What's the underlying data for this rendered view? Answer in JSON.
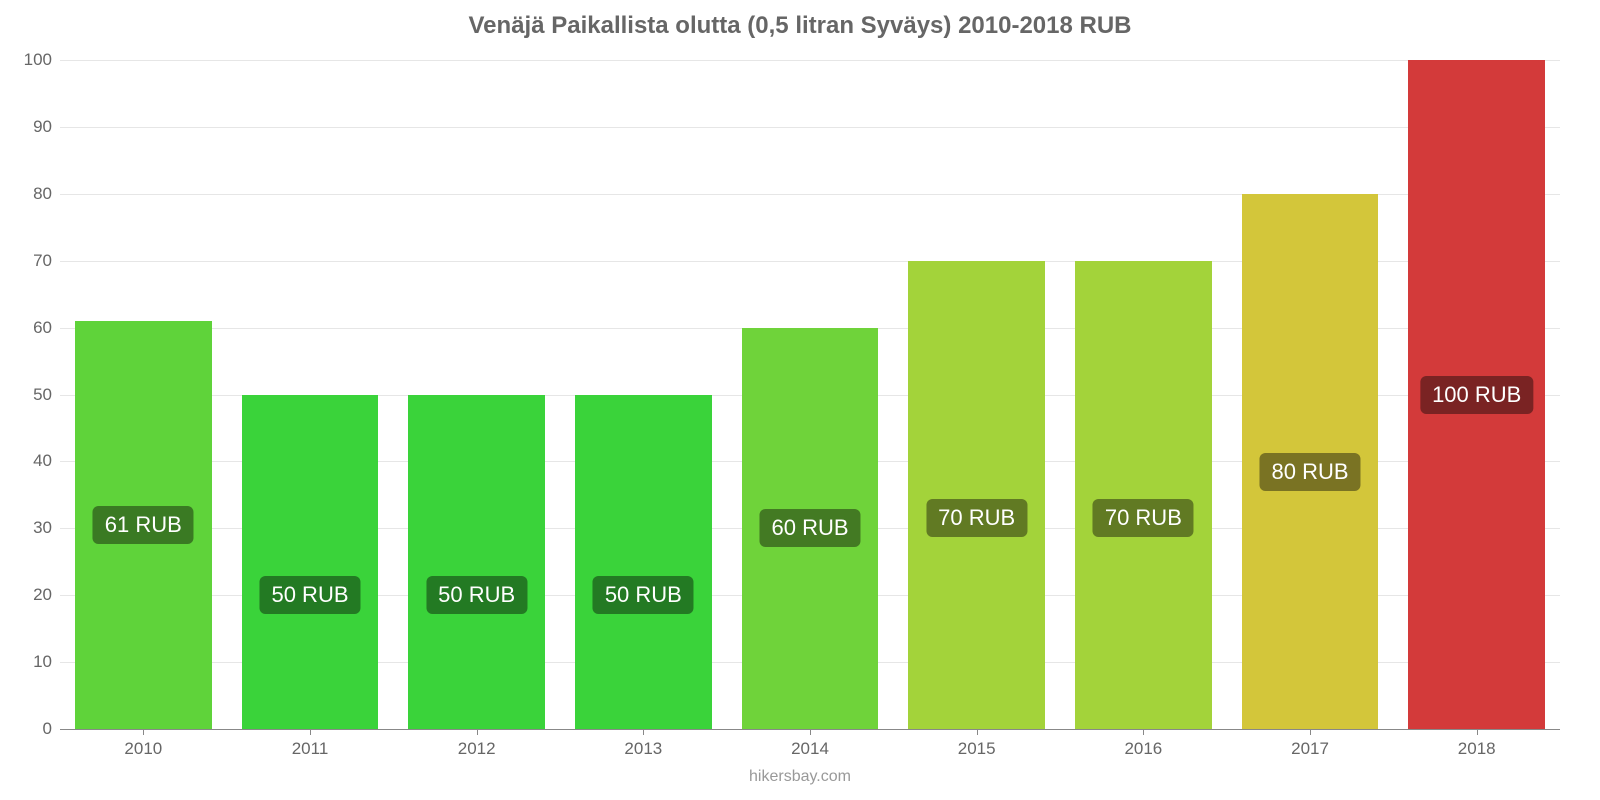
{
  "chart": {
    "type": "bar",
    "title": "Venäjä Paikallista olutta (0,5 litran Syväys) 2010-2018 RUB",
    "title_fontsize": 24,
    "title_color": "#666666",
    "credit": "hikersbay.com",
    "credit_color": "#999999",
    "background_color": "#ffffff",
    "grid_color": "#e6e6e6",
    "axis_color": "#888888",
    "tick_label_color": "#666666",
    "tick_label_fontsize": 17,
    "bar_label_fontsize": 22,
    "bar_width": 0.82,
    "ylim": [
      0,
      100
    ],
    "yticks": [
      0,
      10,
      20,
      30,
      40,
      50,
      60,
      70,
      80,
      90,
      100
    ],
    "categories": [
      "2010",
      "2011",
      "2012",
      "2013",
      "2014",
      "2015",
      "2016",
      "2017",
      "2018"
    ],
    "values": [
      61,
      50,
      50,
      50,
      60,
      70,
      70,
      80,
      100
    ],
    "value_labels": [
      "61 RUB",
      "50 RUB",
      "50 RUB",
      "50 RUB",
      "60 RUB",
      "70 RUB",
      "70 RUB",
      "80 RUB",
      "100 RUB"
    ],
    "bar_colors": [
      "#5fd33a",
      "#3ad33a",
      "#3ad33a",
      "#3ad33a",
      "#6fd33a",
      "#a3d33a",
      "#a3d33a",
      "#d3c63a",
      "#d33a3a"
    ],
    "bar_label_bg_colors": [
      "#3a7a23",
      "#237a23",
      "#237a23",
      "#237a23",
      "#437a23",
      "#617a23",
      "#617a23",
      "#7a7323",
      "#7a2323"
    ],
    "bar_label_y_percent": [
      50,
      60,
      60,
      60,
      50,
      55,
      55,
      52,
      50
    ]
  }
}
